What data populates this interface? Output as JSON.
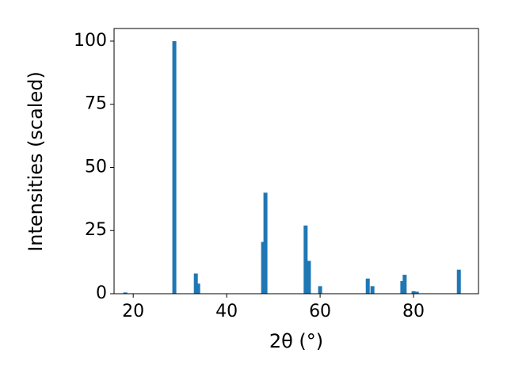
{
  "chart_data": {
    "type": "bar",
    "xlabel": "2θ (°)",
    "ylabel": "Intensities (scaled)",
    "x": [
      18.3,
      28.8,
      33.4,
      33.9,
      47.8,
      48.3,
      56.9,
      57.6,
      60.0,
      70.2,
      71.2,
      77.6,
      78.1,
      80.0,
      80.7,
      89.7
    ],
    "values": [
      0.5,
      100,
      8,
      4,
      20.5,
      40,
      27,
      13,
      3,
      6,
      3,
      5,
      7.5,
      1,
      0.8,
      9.5
    ],
    "color": "#1f77b4",
    "xlim": [
      15.9,
      93.9
    ],
    "ylim": [
      0,
      105
    ],
    "xticks": [
      20,
      40,
      60,
      80
    ],
    "yticks": [
      0,
      25,
      50,
      75,
      100
    ]
  }
}
